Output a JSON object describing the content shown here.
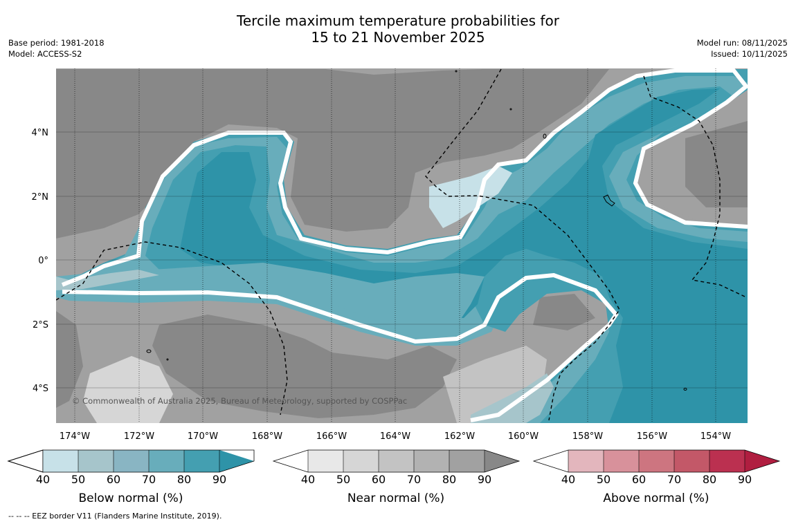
{
  "title": {
    "line1": "Tercile maximum temperature probabilities for",
    "line2": "15 to 21 November 2025"
  },
  "meta_left": {
    "base_period": "Base period: 1981-2018",
    "model": "Model: ACCESS-S2"
  },
  "meta_right": {
    "model_run": "Model run: 08/11/2025",
    "issued": "Issued: 10/11/2025"
  },
  "map": {
    "x_ticks": [
      "174°W",
      "172°W",
      "170°W",
      "168°W",
      "166°W",
      "164°W",
      "162°W",
      "160°W",
      "158°W",
      "156°W",
      "154°W"
    ],
    "y_ticks": [
      "4°N",
      "2°N",
      "0°",
      "2°S",
      "4°S"
    ],
    "copyright": "© Commonwealth of Australia 2025, Bureau of Meteorology, supported by COSPPac"
  },
  "colorbars": [
    {
      "label": "Below normal (%)",
      "ticks": [
        "40",
        "50",
        "60",
        "70",
        "80",
        "90"
      ],
      "colors": [
        "#ffffff",
        "#c7e1e8",
        "#a6c5cb",
        "#89b5c3",
        "#68adbb",
        "#449fb1",
        "#2e93a8"
      ]
    },
    {
      "label": "Near normal (%)",
      "ticks": [
        "40",
        "50",
        "60",
        "70",
        "80",
        "90"
      ],
      "colors": [
        "#ffffff",
        "#e8e8e8",
        "#d6d6d6",
        "#c3c3c3",
        "#b2b2b2",
        "#a1a1a1",
        "#888888"
      ]
    },
    {
      "label": "Above normal (%)",
      "ticks": [
        "40",
        "50",
        "60",
        "70",
        "80",
        "90"
      ],
      "colors": [
        "#ffffff",
        "#e3b6bd",
        "#d8919b",
        "#cd7580",
        "#c35868",
        "#bb3050",
        "#b01e40"
      ]
    }
  ],
  "footnote": "--  --  -- EEZ border V11 (Flanders Marine Institute, 2019)."
}
